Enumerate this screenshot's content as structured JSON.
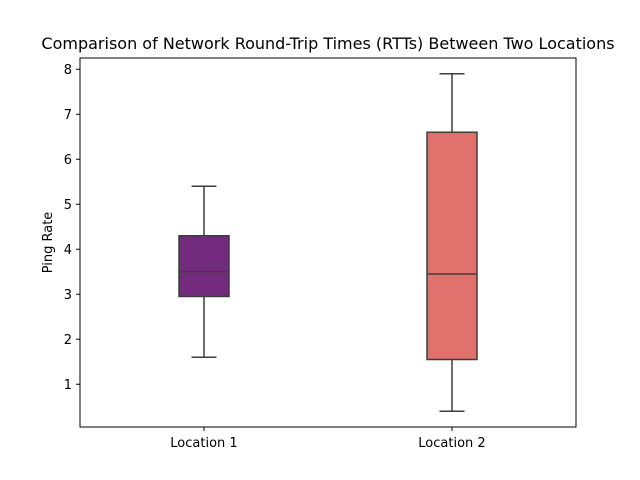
{
  "chart_data": {
    "type": "boxplot",
    "title": "Comparison of Network Round-Trip Times (RTTs) Between Two Locations",
    "xlabel": "",
    "ylabel": "Ping Rate",
    "categories": [
      "Location 1",
      "Location 2"
    ],
    "y_ticks": [
      "1",
      "2",
      "3",
      "4",
      "5",
      "6",
      "7",
      "8"
    ],
    "ylim": [
      0.05,
      8.25
    ],
    "grid": false,
    "legend": "none",
    "boxes": [
      {
        "category": "Location 1",
        "whisker_low": 1.6,
        "q1": 2.95,
        "median": 3.5,
        "q3": 4.3,
        "whisker_high": 5.4,
        "color": "#722b7d"
      },
      {
        "category": "Location 2",
        "whisker_low": 0.4,
        "q1": 1.55,
        "median": 3.45,
        "q3": 6.6,
        "whisker_high": 7.9,
        "color": "#e0716d"
      }
    ],
    "edge_color": "#3d3d3d"
  }
}
